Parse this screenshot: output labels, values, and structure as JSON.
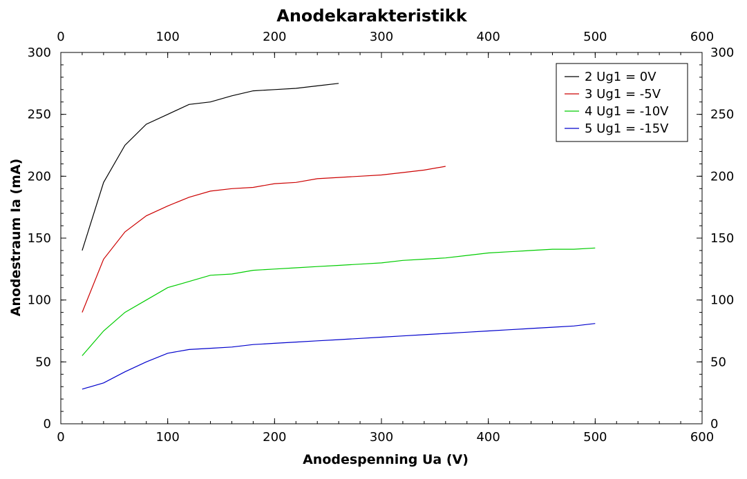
{
  "chart_data": {
    "type": "line",
    "title": "Anodekarakteristikk",
    "xlabel": "Anodespenning Ua (V)",
    "ylabel": "Anodestraum Ia (mA)",
    "xlim": [
      0,
      600
    ],
    "ylim": [
      0,
      300
    ],
    "x_ticks": [
      "0",
      "100",
      "200",
      "300",
      "400",
      "500",
      "600"
    ],
    "y_ticks": [
      "0",
      "50",
      "100",
      "150",
      "200",
      "250",
      "300"
    ],
    "grid": false,
    "legend_position": "top-right",
    "series": [
      {
        "name": "2 Ug1 = 0V",
        "color": "#000000",
        "x": [
          20,
          40,
          60,
          80,
          100,
          120,
          140,
          160,
          180,
          200,
          220,
          240,
          260
        ],
        "y": [
          140,
          195,
          225,
          242,
          250,
          258,
          260,
          265,
          269,
          270,
          271,
          273,
          275
        ]
      },
      {
        "name": "3 Ug1 = -5V",
        "color": "#cc0000",
        "x": [
          20,
          40,
          60,
          80,
          100,
          120,
          140,
          160,
          180,
          200,
          220,
          240,
          260,
          280,
          300,
          320,
          340,
          360
        ],
        "y": [
          90,
          133,
          155,
          168,
          176,
          183,
          188,
          190,
          191,
          194,
          195,
          198,
          199,
          200,
          201,
          203,
          205,
          208
        ]
      },
      {
        "name": "4 Ug1 = -10V",
        "color": "#00cc00",
        "x": [
          20,
          40,
          60,
          80,
          100,
          120,
          140,
          160,
          180,
          200,
          220,
          240,
          260,
          280,
          300,
          320,
          340,
          360,
          380,
          400,
          420,
          440,
          460,
          480,
          500
        ],
        "y": [
          55,
          75,
          90,
          100,
          110,
          115,
          120,
          121,
          124,
          125,
          126,
          127,
          128,
          129,
          130,
          132,
          133,
          134,
          136,
          138,
          139,
          140,
          141,
          141,
          142
        ]
      },
      {
        "name": "5 Ug1 = -15V",
        "color": "#0000cc",
        "x": [
          20,
          40,
          60,
          80,
          100,
          120,
          140,
          160,
          180,
          200,
          220,
          240,
          260,
          280,
          300,
          320,
          340,
          360,
          380,
          400,
          420,
          440,
          460,
          480,
          500
        ],
        "y": [
          28,
          33,
          42,
          50,
          57,
          60,
          61,
          62,
          64,
          65,
          66,
          67,
          68,
          69,
          70,
          71,
          72,
          73,
          74,
          75,
          76,
          77,
          78,
          79,
          81
        ]
      }
    ]
  }
}
